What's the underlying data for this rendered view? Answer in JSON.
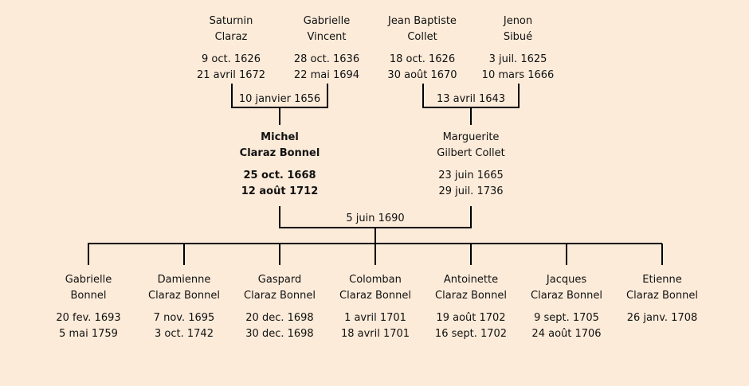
{
  "parents": [
    {
      "id": "saturnin",
      "name1": "Saturnin",
      "name2": "Claraz",
      "birth": "9 oct. 1626",
      "death": "21 avril 1672"
    },
    {
      "id": "gabrielle-v",
      "name1": "Gabrielle",
      "name2": "Vincent",
      "birth": "28 oct. 1636",
      "death": "22 mai 1694"
    },
    {
      "id": "jean-baptiste",
      "name1": "Jean Baptiste",
      "name2": "Collet",
      "birth": "18 oct. 1626",
      "death": "30 août 1670"
    },
    {
      "id": "jenon",
      "name1": "Jenon",
      "name2": "Sibué",
      "birth": "3 juil. 1625",
      "death": "10 mars 1666"
    }
  ],
  "marriages": {
    "paternal": "10 janvier 1656",
    "maternal": "13 avril 1643",
    "main": "5 juin 1690"
  },
  "couple": [
    {
      "id": "michel",
      "name1": "Michel",
      "name2": "Claraz Bonnel",
      "birth": "25 oct. 1668",
      "death": "12 août 1712"
    },
    {
      "id": "marguerite",
      "name1": "Marguerite",
      "name2": "Gilbert Collet",
      "birth": "23 juin 1665",
      "death": "29 juil. 1736"
    }
  ],
  "children": [
    {
      "id": "gabrielle-b",
      "name1": "Gabrielle",
      "name2": "Bonnel",
      "birth": "20 fev. 1693",
      "death": "5 mai 1759"
    },
    {
      "id": "damienne",
      "name1": "Damienne",
      "name2": "Claraz Bonnel",
      "birth": "7 nov. 1695",
      "death": "3 oct. 1742"
    },
    {
      "id": "gaspard",
      "name1": "Gaspard",
      "name2": "Claraz Bonnel",
      "birth": "20 dec. 1698",
      "death": "30 dec. 1698"
    },
    {
      "id": "colomban",
      "name1": "Colomban",
      "name2": "Claraz Bonnel",
      "birth": "1 avril 1701",
      "death": "18 avril 1701"
    },
    {
      "id": "antoinette",
      "name1": "Antoinette",
      "name2": "Claraz Bonnel",
      "birth": "19 août 1702",
      "death": "16 sept. 1702"
    },
    {
      "id": "jacques",
      "name1": "Jacques",
      "name2": "Claraz Bonnel",
      "birth": "9 sept. 1705",
      "death": "24 août 1706"
    },
    {
      "id": "etienne",
      "name1": "Etienne",
      "name2": "Claraz Bonnel",
      "birth": "26 janv. 1708",
      "death": ""
    }
  ]
}
